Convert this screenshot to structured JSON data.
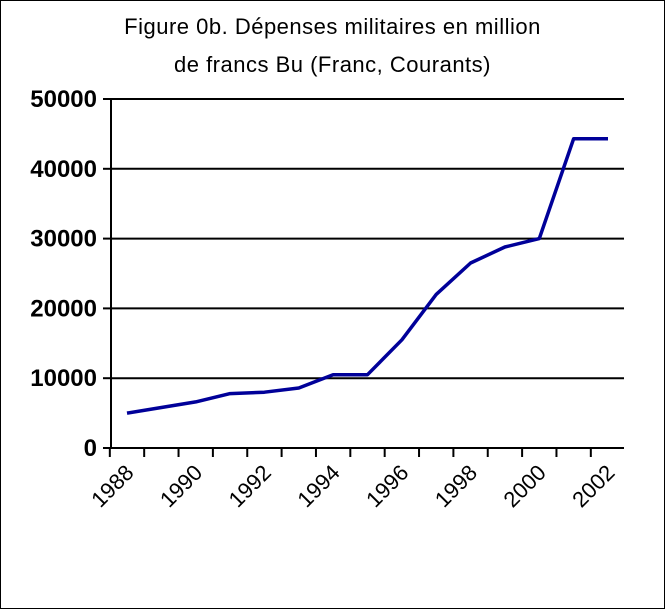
{
  "chart_data": {
    "type": "line",
    "title_lines": [
      "Figure 0b. Dépenses militaires en million",
      "de francs Bu (Franc, Courants)"
    ],
    "xlabel": "",
    "ylabel": "",
    "ylim": [
      0,
      50000
    ],
    "y_ticks": [
      0,
      10000,
      20000,
      30000,
      40000,
      50000
    ],
    "x_tick_labels": [
      "1988",
      "1990",
      "1992",
      "1994",
      "1996",
      "1998",
      "2000",
      "2002"
    ],
    "grid": "horizontal",
    "legend": "none",
    "series": [
      {
        "color": "#000099",
        "x": [
          1988,
          1989,
          1990,
          1991,
          1992,
          1993,
          1994,
          1995,
          1996,
          1997,
          1998,
          1999,
          2000,
          2001,
          2002
        ],
        "values": [
          5000,
          5800,
          6600,
          7800,
          8000,
          8600,
          10500,
          10500,
          15500,
          22000,
          26500,
          28800,
          30000,
          44300,
          44300
        ]
      }
    ]
  }
}
